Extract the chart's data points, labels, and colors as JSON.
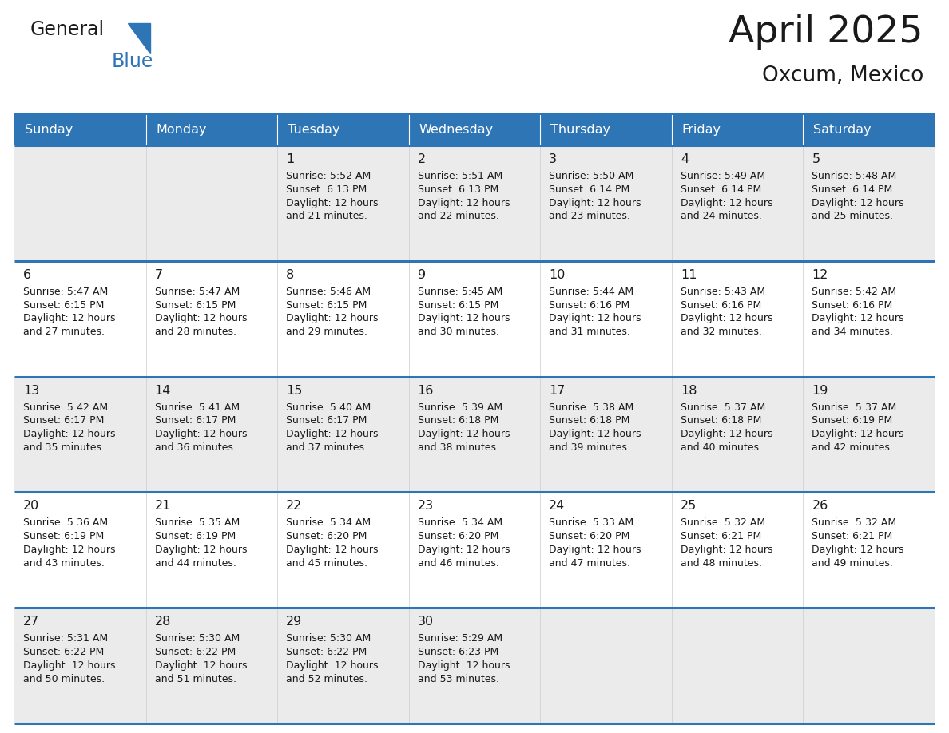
{
  "title": "April 2025",
  "subtitle": "Oxcum, Mexico",
  "header_color": "#2E75B6",
  "header_text_color": "#FFFFFF",
  "row_bg_odd": "#EBEBEB",
  "row_bg_even": "#FFFFFF",
  "text_color": "#1a1a1a",
  "border_blue": "#2E75B6",
  "border_inner": "#CCCCCC",
  "days_of_week": [
    "Sunday",
    "Monday",
    "Tuesday",
    "Wednesday",
    "Thursday",
    "Friday",
    "Saturday"
  ],
  "logo_general_color": "#1a1a1a",
  "logo_blue_color": "#2E75B6",
  "calendar_data": [
    [
      {
        "day": "",
        "sunrise": "",
        "sunset": "",
        "daylight": ""
      },
      {
        "day": "",
        "sunrise": "",
        "sunset": "",
        "daylight": ""
      },
      {
        "day": "1",
        "sunrise": "5:52 AM",
        "sunset": "6:13 PM",
        "daylight": "12 hours and 21 minutes."
      },
      {
        "day": "2",
        "sunrise": "5:51 AM",
        "sunset": "6:13 PM",
        "daylight": "12 hours and 22 minutes."
      },
      {
        "day": "3",
        "sunrise": "5:50 AM",
        "sunset": "6:14 PM",
        "daylight": "12 hours and 23 minutes."
      },
      {
        "day": "4",
        "sunrise": "5:49 AM",
        "sunset": "6:14 PM",
        "daylight": "12 hours and 24 minutes."
      },
      {
        "day": "5",
        "sunrise": "5:48 AM",
        "sunset": "6:14 PM",
        "daylight": "12 hours and 25 minutes."
      }
    ],
    [
      {
        "day": "6",
        "sunrise": "5:47 AM",
        "sunset": "6:15 PM",
        "daylight": "12 hours and 27 minutes."
      },
      {
        "day": "7",
        "sunrise": "5:47 AM",
        "sunset": "6:15 PM",
        "daylight": "12 hours and 28 minutes."
      },
      {
        "day": "8",
        "sunrise": "5:46 AM",
        "sunset": "6:15 PM",
        "daylight": "12 hours and 29 minutes."
      },
      {
        "day": "9",
        "sunrise": "5:45 AM",
        "sunset": "6:15 PM",
        "daylight": "12 hours and 30 minutes."
      },
      {
        "day": "10",
        "sunrise": "5:44 AM",
        "sunset": "6:16 PM",
        "daylight": "12 hours and 31 minutes."
      },
      {
        "day": "11",
        "sunrise": "5:43 AM",
        "sunset": "6:16 PM",
        "daylight": "12 hours and 32 minutes."
      },
      {
        "day": "12",
        "sunrise": "5:42 AM",
        "sunset": "6:16 PM",
        "daylight": "12 hours and 34 minutes."
      }
    ],
    [
      {
        "day": "13",
        "sunrise": "5:42 AM",
        "sunset": "6:17 PM",
        "daylight": "12 hours and 35 minutes."
      },
      {
        "day": "14",
        "sunrise": "5:41 AM",
        "sunset": "6:17 PM",
        "daylight": "12 hours and 36 minutes."
      },
      {
        "day": "15",
        "sunrise": "5:40 AM",
        "sunset": "6:17 PM",
        "daylight": "12 hours and 37 minutes."
      },
      {
        "day": "16",
        "sunrise": "5:39 AM",
        "sunset": "6:18 PM",
        "daylight": "12 hours and 38 minutes."
      },
      {
        "day": "17",
        "sunrise": "5:38 AM",
        "sunset": "6:18 PM",
        "daylight": "12 hours and 39 minutes."
      },
      {
        "day": "18",
        "sunrise": "5:37 AM",
        "sunset": "6:18 PM",
        "daylight": "12 hours and 40 minutes."
      },
      {
        "day": "19",
        "sunrise": "5:37 AM",
        "sunset": "6:19 PM",
        "daylight": "12 hours and 42 minutes."
      }
    ],
    [
      {
        "day": "20",
        "sunrise": "5:36 AM",
        "sunset": "6:19 PM",
        "daylight": "12 hours and 43 minutes."
      },
      {
        "day": "21",
        "sunrise": "5:35 AM",
        "sunset": "6:19 PM",
        "daylight": "12 hours and 44 minutes."
      },
      {
        "day": "22",
        "sunrise": "5:34 AM",
        "sunset": "6:20 PM",
        "daylight": "12 hours and 45 minutes."
      },
      {
        "day": "23",
        "sunrise": "5:34 AM",
        "sunset": "6:20 PM",
        "daylight": "12 hours and 46 minutes."
      },
      {
        "day": "24",
        "sunrise": "5:33 AM",
        "sunset": "6:20 PM",
        "daylight": "12 hours and 47 minutes."
      },
      {
        "day": "25",
        "sunrise": "5:32 AM",
        "sunset": "6:21 PM",
        "daylight": "12 hours and 48 minutes."
      },
      {
        "day": "26",
        "sunrise": "5:32 AM",
        "sunset": "6:21 PM",
        "daylight": "12 hours and 49 minutes."
      }
    ],
    [
      {
        "day": "27",
        "sunrise": "5:31 AM",
        "sunset": "6:22 PM",
        "daylight": "12 hours and 50 minutes."
      },
      {
        "day": "28",
        "sunrise": "5:30 AM",
        "sunset": "6:22 PM",
        "daylight": "12 hours and 51 minutes."
      },
      {
        "day": "29",
        "sunrise": "5:30 AM",
        "sunset": "6:22 PM",
        "daylight": "12 hours and 52 minutes."
      },
      {
        "day": "30",
        "sunrise": "5:29 AM",
        "sunset": "6:23 PM",
        "daylight": "12 hours and 53 minutes."
      },
      {
        "day": "",
        "sunrise": "",
        "sunset": "",
        "daylight": ""
      },
      {
        "day": "",
        "sunrise": "",
        "sunset": "",
        "daylight": ""
      },
      {
        "day": "",
        "sunrise": "",
        "sunset": "",
        "daylight": ""
      }
    ]
  ]
}
